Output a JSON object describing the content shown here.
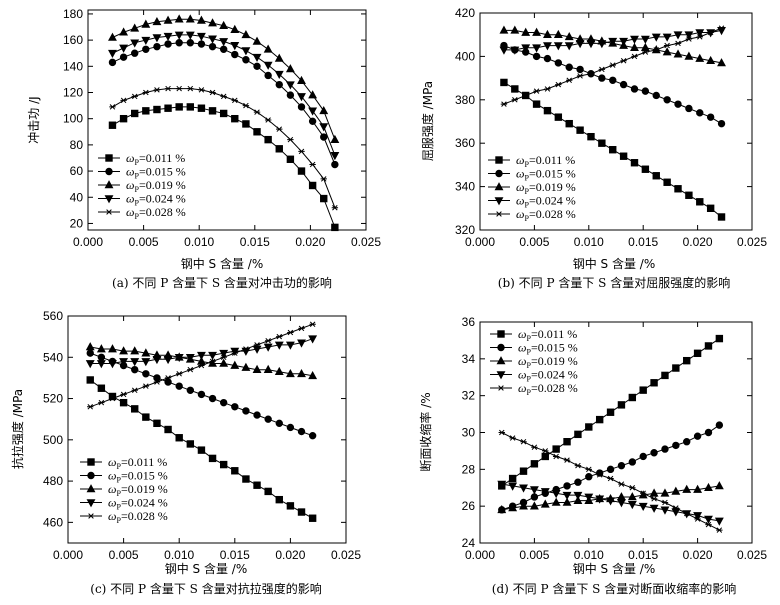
{
  "series_names": [
    "ωP=0.011 %",
    "ωP=0.015 %",
    "ωP=0.019 %",
    "ωP=0.024 %",
    "ωP=0.028 %"
  ],
  "marker_types": [
    "square",
    "circle",
    "triangle-up",
    "triangle-down",
    "star"
  ],
  "chart_data": [
    {
      "type": "line",
      "title": "(a) 不同 P 含量下 S 含量对冲击功的影响",
      "xlabel": "钢中 S 含量 /%",
      "ylabel": "冲击功 /J",
      "xlim": [
        0.0,
        0.025
      ],
      "ylim": [
        15,
        183
      ],
      "xticks": [
        0.0,
        0.005,
        0.01,
        0.015,
        0.02,
        0.025
      ],
      "xtick_labels": [
        "0.000",
        "0.005",
        "0.010",
        "0.015",
        "0.020",
        "0.025"
      ],
      "yticks": [
        20,
        40,
        60,
        80,
        100,
        120,
        140,
        160,
        180
      ],
      "ytick_labels": [
        "20",
        "40",
        "60",
        "80",
        "100",
        "120",
        "140",
        "160",
        "180"
      ],
      "legend_position": "lower-left",
      "x": [
        0.0022,
        0.0032,
        0.0042,
        0.0052,
        0.0062,
        0.0072,
        0.0082,
        0.0092,
        0.0102,
        0.0112,
        0.0122,
        0.0132,
        0.0142,
        0.0152,
        0.0162,
        0.0172,
        0.0182,
        0.0192,
        0.0202,
        0.0212,
        0.0222
      ],
      "series": [
        {
          "name": "ωP=0.011 %",
          "marker": "square",
          "values": [
            95,
            100,
            104,
            106,
            107,
            108,
            109,
            109,
            108,
            106,
            104,
            100,
            96,
            90,
            84,
            77,
            69,
            60,
            49,
            39,
            17
          ]
        },
        {
          "name": "ωP=0.015 %",
          "marker": "circle",
          "values": [
            143,
            147,
            150,
            153,
            155,
            157,
            158,
            158,
            157,
            155,
            153,
            149,
            145,
            140,
            133,
            126,
            118,
            109,
            98,
            86,
            65
          ]
        },
        {
          "name": "ωP=0.019 %",
          "marker": "triangle-up",
          "values": [
            162,
            166,
            169,
            172,
            174,
            175,
            176,
            176,
            175,
            173,
            171,
            168,
            164,
            159,
            153,
            146,
            138,
            129,
            118,
            106,
            84
          ]
        },
        {
          "name": "ωP=0.024 %",
          "marker": "triangle-down",
          "values": [
            150,
            154,
            158,
            160,
            162,
            163,
            164,
            164,
            163,
            161,
            159,
            156,
            152,
            147,
            141,
            134,
            126,
            117,
            106,
            94,
            72
          ]
        },
        {
          "name": "ωP=0.028 %",
          "marker": "star",
          "values": [
            109,
            114,
            117,
            120,
            122,
            123,
            123,
            123,
            122,
            120,
            117,
            114,
            110,
            105,
            99,
            92,
            84,
            75,
            65,
            54,
            32
          ]
        }
      ]
    },
    {
      "type": "line",
      "title": "(b) 不同 P 含量下 S 含量对屈服强度的影响",
      "xlabel": "钢中 S 含量 /%",
      "ylabel": "屈服强度 /MPa",
      "xlim": [
        0.0,
        0.025
      ],
      "ylim": [
        320,
        420
      ],
      "xticks": [
        0.0,
        0.005,
        0.01,
        0.015,
        0.02,
        0.025
      ],
      "xtick_labels": [
        "0.000",
        "0.005",
        "0.010",
        "0.015",
        "0.020",
        "0.025"
      ],
      "yticks": [
        320,
        340,
        360,
        380,
        400,
        420
      ],
      "ytick_labels": [
        "320",
        "340",
        "360",
        "380",
        "400",
        "420"
      ],
      "legend_position": "lower-left",
      "x": [
        0.0022,
        0.0032,
        0.0042,
        0.0052,
        0.0062,
        0.0072,
        0.0082,
        0.0092,
        0.0102,
        0.0112,
        0.0122,
        0.0132,
        0.0142,
        0.0152,
        0.0162,
        0.0172,
        0.0182,
        0.0192,
        0.0202,
        0.0212,
        0.0222
      ],
      "series": [
        {
          "name": "ωP=0.011 %",
          "marker": "square",
          "values": [
            388,
            385,
            382,
            378,
            375,
            372,
            369,
            366,
            363,
            360,
            357,
            354,
            351,
            348,
            345,
            342,
            339,
            336,
            333,
            330,
            326
          ]
        },
        {
          "name": "ωP=0.015 %",
          "marker": "circle",
          "values": [
            405,
            403,
            402,
            400,
            399,
            397,
            395,
            394,
            392,
            390,
            389,
            387,
            385,
            384,
            382,
            380,
            378,
            376,
            374,
            372,
            369
          ]
        },
        {
          "name": "ωP=0.019 %",
          "marker": "triangle-up",
          "values": [
            412,
            412,
            411,
            411,
            410,
            410,
            409,
            408,
            408,
            407,
            406,
            405,
            404,
            404,
            403,
            402,
            401,
            400,
            399,
            398,
            397
          ]
        },
        {
          "name": "ωP=0.024 %",
          "marker": "triangle-down",
          "values": [
            403,
            403,
            404,
            404,
            405,
            405,
            405,
            406,
            406,
            406,
            407,
            407,
            408,
            408,
            409,
            409,
            410,
            410,
            411,
            411,
            412
          ]
        },
        {
          "name": "ωP=0.028 %",
          "marker": "star",
          "values": [
            378,
            380,
            382,
            384,
            385,
            387,
            389,
            391,
            392,
            394,
            396,
            398,
            400,
            402,
            403,
            405,
            406,
            408,
            409,
            411,
            413
          ]
        }
      ]
    },
    {
      "type": "line",
      "title": "(c) 不同 P 含量下 S 含量对抗拉强度的影响",
      "xlabel": "钢中 S 含量 /%",
      "ylabel": "抗拉强度 /MPa",
      "xlim": [
        0.0,
        0.025
      ],
      "ylim": [
        450,
        560
      ],
      "xticks": [
        0.0,
        0.005,
        0.01,
        0.015,
        0.02,
        0.025
      ],
      "xtick_labels": [
        "0.000",
        "0.005",
        "0.010",
        "0.015",
        "0.020",
        "0.025"
      ],
      "yticks": [
        460,
        480,
        500,
        520,
        540,
        560
      ],
      "ytick_labels": [
        "460",
        "480",
        "500",
        "520",
        "540",
        "560"
      ],
      "legend_position": "lower-left",
      "x": [
        0.002,
        0.003,
        0.004,
        0.005,
        0.006,
        0.007,
        0.008,
        0.009,
        0.01,
        0.011,
        0.012,
        0.013,
        0.014,
        0.015,
        0.016,
        0.017,
        0.018,
        0.019,
        0.02,
        0.021,
        0.022
      ],
      "series": [
        {
          "name": "ωP=0.011 %",
          "marker": "square",
          "values": [
            529,
            525,
            521,
            518,
            515,
            511,
            508,
            505,
            501,
            498,
            495,
            491,
            488,
            485,
            481,
            478,
            475,
            471,
            468,
            465,
            462
          ]
        },
        {
          "name": "ωP=0.015 %",
          "marker": "circle",
          "values": [
            542,
            540,
            538,
            536,
            534,
            532,
            530,
            528,
            526,
            524,
            522,
            520,
            518,
            516,
            514,
            512,
            510,
            508,
            506,
            504,
            502
          ]
        },
        {
          "name": "ωP=0.019 %",
          "marker": "triangle-up",
          "values": [
            545,
            544,
            544,
            543,
            543,
            542,
            541,
            541,
            540,
            539,
            538,
            537,
            537,
            536,
            535,
            534,
            534,
            533,
            532,
            532,
            531
          ]
        },
        {
          "name": "ωP=0.024 %",
          "marker": "triangle-down",
          "values": [
            537,
            537,
            537,
            538,
            538,
            538,
            539,
            539,
            540,
            540,
            541,
            541,
            542,
            543,
            543,
            544,
            545,
            546,
            546,
            547,
            549
          ]
        },
        {
          "name": "ωP=0.028 %",
          "marker": "star",
          "values": [
            516,
            518,
            520,
            522,
            524,
            526,
            528,
            530,
            532,
            534,
            536,
            538,
            540,
            542,
            544,
            546,
            548,
            550,
            552,
            554,
            556
          ]
        }
      ]
    },
    {
      "type": "line",
      "title": "(d) 不同 P 含量下 S 含量对断面收缩率的影响",
      "xlabel": "钢中 S 含量 /%",
      "ylabel": "断面收缩率 /%",
      "xlim": [
        0.0,
        0.025
      ],
      "ylim": [
        24,
        36
      ],
      "xticks": [
        0.0,
        0.005,
        0.01,
        0.015,
        0.02,
        0.025
      ],
      "xtick_labels": [
        "0.000",
        "0.005",
        "0.010",
        "0.015",
        "0.020",
        "0.025"
      ],
      "yticks": [
        24,
        26,
        28,
        30,
        32,
        34,
        36
      ],
      "ytick_labels": [
        "24",
        "26",
        "28",
        "30",
        "32",
        "34",
        "36"
      ],
      "legend_position": "top-left",
      "x": [
        0.002,
        0.003,
        0.004,
        0.005,
        0.006,
        0.007,
        0.008,
        0.009,
        0.01,
        0.011,
        0.012,
        0.013,
        0.014,
        0.015,
        0.016,
        0.017,
        0.018,
        0.019,
        0.02,
        0.021,
        0.022
      ],
      "series": [
        {
          "name": "ωP=0.011 %",
          "marker": "square",
          "values": [
            27.1,
            27.5,
            27.9,
            28.3,
            28.7,
            29.1,
            29.5,
            29.9,
            30.3,
            30.7,
            31.1,
            31.5,
            31.9,
            32.3,
            32.7,
            33.1,
            33.5,
            33.9,
            34.3,
            34.7,
            35.1
          ]
        },
        {
          "name": "ωP=0.015 %",
          "marker": "circle",
          "values": [
            25.8,
            26.0,
            26.2,
            26.5,
            26.7,
            26.9,
            27.1,
            27.3,
            27.6,
            27.8,
            28.0,
            28.2,
            28.4,
            28.7,
            28.9,
            29.1,
            29.3,
            29.5,
            29.8,
            30.0,
            30.4
          ]
        },
        {
          "name": "ωP=0.019 %",
          "marker": "triangle-up",
          "values": [
            25.8,
            25.9,
            26.0,
            26.0,
            26.1,
            26.2,
            26.2,
            26.3,
            26.3,
            26.4,
            26.4,
            26.5,
            26.5,
            26.6,
            26.7,
            26.7,
            26.8,
            26.9,
            26.9,
            27.0,
            27.1
          ]
        },
        {
          "name": "ωP=0.024 %",
          "marker": "triangle-down",
          "values": [
            27.2,
            27.1,
            27.0,
            26.9,
            26.8,
            26.7,
            26.6,
            26.6,
            26.5,
            26.4,
            26.3,
            26.2,
            26.1,
            26.0,
            25.9,
            25.8,
            25.7,
            25.6,
            25.5,
            25.3,
            25.2
          ]
        },
        {
          "name": "ωP=0.028 %",
          "marker": "star",
          "values": [
            30.0,
            29.7,
            29.5,
            29.2,
            29.0,
            28.7,
            28.5,
            28.2,
            28.0,
            27.7,
            27.5,
            27.2,
            27.0,
            26.7,
            26.4,
            26.2,
            25.9,
            25.6,
            25.3,
            25.0,
            24.7
          ]
        }
      ]
    }
  ]
}
